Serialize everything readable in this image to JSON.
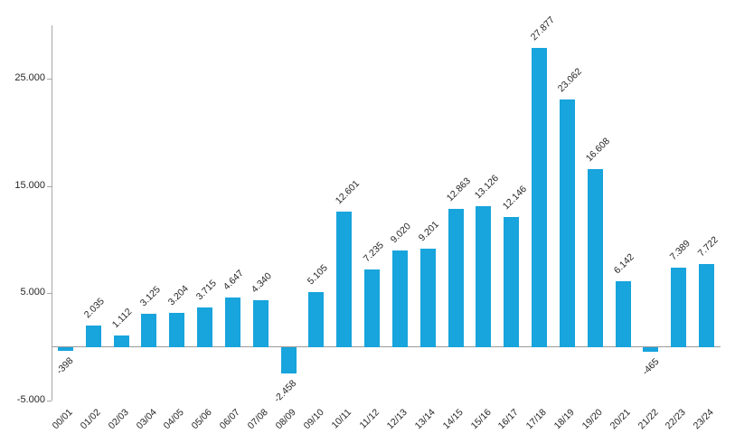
{
  "chart_data": {
    "type": "bar",
    "title": "",
    "xlabel": "",
    "ylabel": "",
    "categories": [
      "00/01",
      "01/02",
      "02/03",
      "03/04",
      "04/05",
      "05/06",
      "06/07",
      "07/08",
      "08/09",
      "09/10",
      "10/11",
      "11/12",
      "12/13",
      "13/14",
      "14/15",
      "15/16",
      "16/17",
      "17/18",
      "18/19",
      "19/20",
      "20/21",
      "21/22",
      "22/23",
      "23/24"
    ],
    "values": [
      -398,
      2035,
      1112,
      3125,
      3204,
      3715,
      4647,
      4340,
      -2458,
      5105,
      12601,
      7235,
      9020,
      9201,
      12863,
      13126,
      12146,
      27877,
      23062,
      16608,
      6142,
      -465,
      7389,
      7722
    ],
    "value_labels": [
      "-398",
      "2.035",
      "1.112",
      "3.125",
      "3.204",
      "3.715",
      "4.647",
      "4.340",
      "-2.458",
      "5.105",
      "12.601",
      "7.235",
      "9.020",
      "9.201",
      "12.863",
      "13.126",
      "12.146",
      "27.877",
      "23.062",
      "16.608",
      "6.142",
      "-465",
      "7.389",
      "7.722"
    ],
    "ylim": [
      -5000,
      30000
    ],
    "y_ticks": [
      -5000,
      5000,
      15000,
      25000
    ],
    "y_tick_labels": [
      "-5.000",
      "5.000",
      "15.000",
      "25.000"
    ],
    "bar_color": "#18a4dc",
    "axis_color": "#a6a6a6",
    "label_color": "#262626",
    "grid": false,
    "legend": "none",
    "label_rotation_deg": 45
  }
}
